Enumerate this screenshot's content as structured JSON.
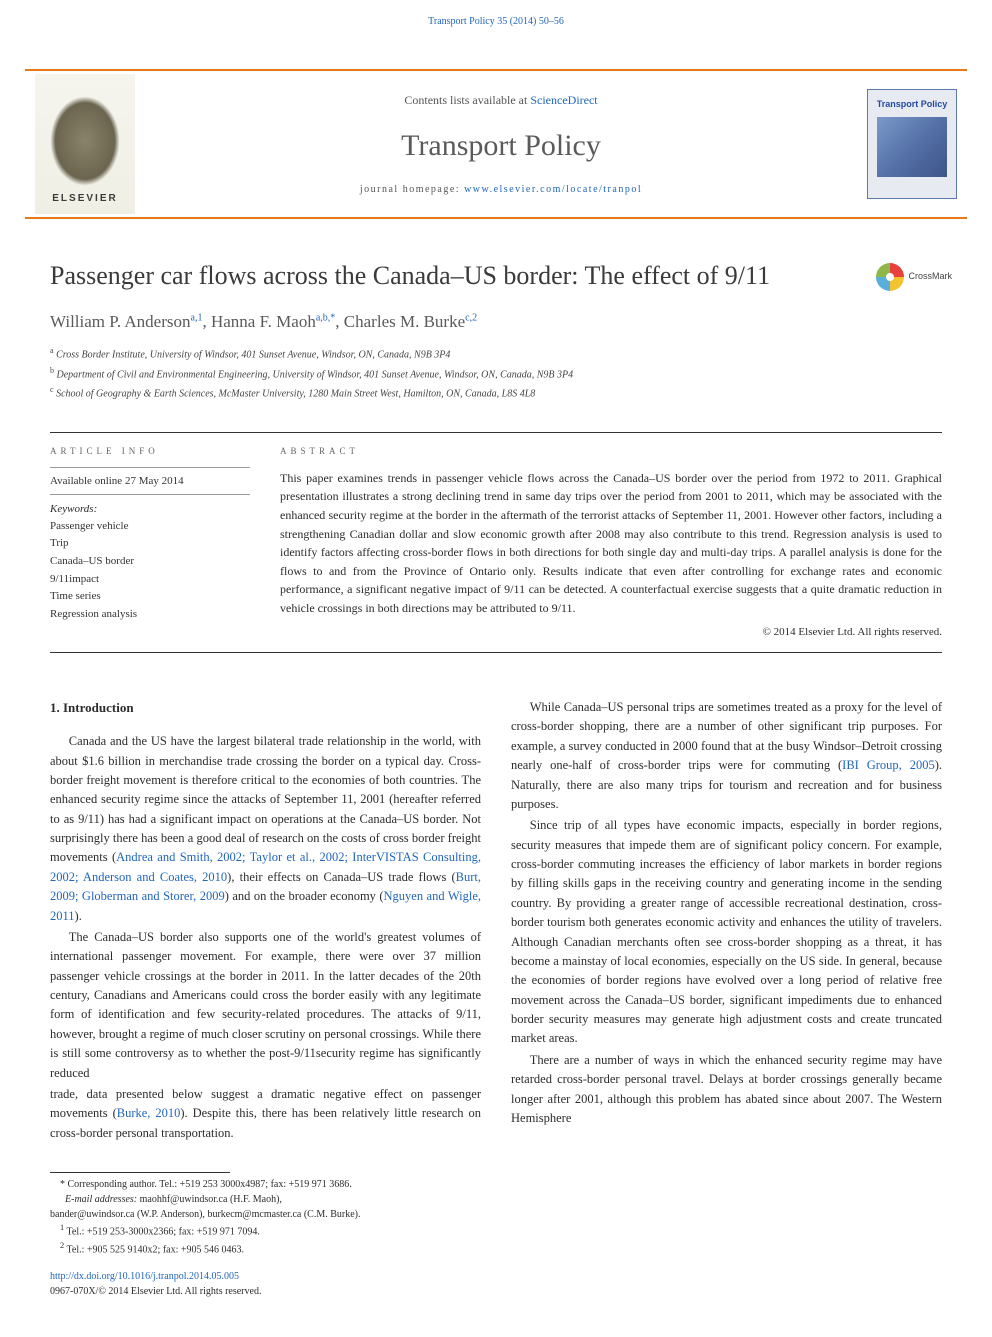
{
  "header": {
    "citation": "Transport Policy 35 (2014) 50–56",
    "contents_prefix": "Contents lists available at ",
    "contents_link": "ScienceDirect",
    "journal": "Transport Policy",
    "homepage_prefix": "journal homepage: ",
    "homepage_url": "www.elsevier.com/locate/tranpol",
    "elsevier": "ELSEVIER",
    "cover_title": "Transport Policy"
  },
  "crossmark": "CrossMark",
  "title": "Passenger car flows across the Canada–US border: The effect of 9/11",
  "authors_html": "William P. Anderson",
  "authors": [
    {
      "name": "William P. Anderson",
      "sup": "a,1"
    },
    {
      "name": "Hanna F. Maoh",
      "sup": "a,b,*"
    },
    {
      "name": "Charles M. Burke",
      "sup": "c,2"
    }
  ],
  "affiliations": [
    {
      "sup": "a",
      "text": "Cross Border Institute, University of Windsor, 401 Sunset Avenue, Windsor, ON, Canada, N9B 3P4"
    },
    {
      "sup": "b",
      "text": "Department of Civil and Environmental Engineering, University of Windsor, 401 Sunset Avenue, Windsor, ON, Canada, N9B 3P4"
    },
    {
      "sup": "c",
      "text": "School of Geography & Earth Sciences, McMaster University, 1280 Main Street West, Hamilton, ON, Canada, L8S 4L8"
    }
  ],
  "article_info": {
    "heading": "ARTICLE INFO",
    "available_online": "Available online 27 May 2014",
    "keywords_label": "Keywords:",
    "keywords": [
      "Passenger vehicle",
      "Trip",
      "Canada–US border",
      "9/11impact",
      "Time series",
      "Regression analysis"
    ]
  },
  "abstract": {
    "heading": "ABSTRACT",
    "text": "This paper examines trends in passenger vehicle flows across the Canada–US border over the period from 1972 to 2011. Graphical presentation illustrates a strong declining trend in same day trips over the period from 2001 to 2011, which may be associated with the enhanced security regime at the border in the aftermath of the terrorist attacks of September 11, 2001. However other factors, including a strengthening Canadian dollar and slow economic growth after 2008 may also contribute to this trend. Regression analysis is used to identify factors affecting cross-border flows in both directions for both single day and multi-day trips. A parallel analysis is done for the flows to and from the Province of Ontario only. Results indicate that even after controlling for exchange rates and economic performance, a significant negative impact of 9/11 can be detected. A counterfactual exercise suggests that a quite dramatic reduction in vehicle crossings in both directions may be attributed to 9/11.",
    "copyright": "© 2014 Elsevier Ltd. All rights reserved."
  },
  "body": {
    "section1_heading": "1.  Introduction",
    "p1a": "Canada and the US have the largest bilateral trade relationship in the world, with about $1.6 billion in merchandise trade crossing the border on a typical day. Cross-border freight movement is therefore critical to the economies of both countries. The enhanced security regime since the attacks of September 11, 2001 (hereafter referred to as 9/11) has had a significant impact on operations at the Canada–US border. Not surprisingly there has been a good deal of research on the costs of cross border freight movements (",
    "p1_link1": "Andrea and Smith, 2002; Taylor et al., 2002; InterVISTAS Consulting, 2002; Anderson and Coates, 2010",
    "p1b": "), their effects on Canada–US trade flows (",
    "p1_link2": "Burt, 2009; Globerman and Storer, 2009",
    "p1c": ") and on the broader economy (",
    "p1_link3": "Nguyen and Wigle, 2011",
    "p1d": ").",
    "p2a": "The Canada–US border also supports one of the world's greatest volumes of international passenger movement. For example, there were over 37 million passenger vehicle crossings at the border in 2011. In the latter decades of the 20th century, Canadians and Americans could cross the border easily with any legitimate form of identification and few security-related procedures. The attacks of 9/11, however, brought a regime of much closer scrutiny on personal crossings. While there is still some controversy as to whether the post-9/11security regime has significantly reduced",
    "p3a": "trade, data presented below suggest a dramatic negative effect on passenger movements (",
    "p3_link1": "Burke, 2010",
    "p3b": "). Despite this, there has been relatively little research on cross-border personal transportation.",
    "p4a": "While Canada–US personal trips are sometimes treated as a proxy for the level of cross-border shopping, there are a number of other significant trip purposes. For example, a survey conducted in 2000 found that at the busy Windsor–Detroit crossing nearly one-half of cross-border trips were for commuting (",
    "p4_link1": "IBI Group, 2005",
    "p4b": "). Naturally, there are also many trips for tourism and recreation and for business purposes.",
    "p5": "Since trip of all types have economic impacts, especially in border regions, security measures that impede them are of significant policy concern. For example, cross-border commuting increases the efficiency of labor markets in border regions by filling skills gaps in the receiving country and generating income in the sending country. By providing a greater range of accessible recreational destination, cross-border tourism both generates economic activity and enhances the utility of travelers. Although Canadian merchants often see cross-border shopping as a threat, it has become a mainstay of local economies, especially on the US side. In general, because the economies of border regions have evolved over a long period of relative free movement across the Canada–US border, significant impediments due to enhanced border security measures may generate high adjustment costs and create truncated market areas.",
    "p6": "There are a number of ways in which the enhanced security regime may have retarded cross-border personal travel. Delays at border crossings generally became longer after 2001, although this problem has abated since about 2007. The Western Hemisphere"
  },
  "footnotes": {
    "corr": "* Corresponding author. Tel.: +519 253 3000x4987; fax: +519 971 3686.",
    "email_label": "E-mail addresses: ",
    "email1": "maohhf@uwindsor.ca",
    "email1_who": " (H.F. Maoh),",
    "email2": "bander@uwindsor.ca",
    "email2_who": " (W.P. Anderson), ",
    "email3": "burkecm@mcmaster.ca",
    "email3_who": " (C.M. Burke).",
    "fn1": "Tel.: +519 253-3000x2366; fax: +519 971 7094.",
    "fn2": "Tel.: +905 525 9140x2; fax: +905 546 0463.",
    "doi": "http://dx.doi.org/10.1016/j.tranpol.2014.05.005",
    "issn": "0967-070X/© 2014 Elsevier Ltd. All rights reserved."
  }
}
